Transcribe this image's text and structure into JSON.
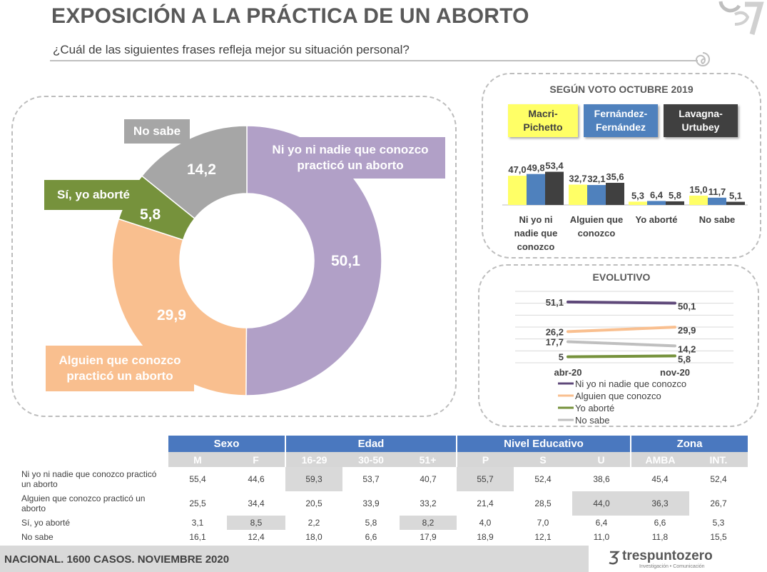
{
  "title": "EXPOSICIÓN A LA PRÁCTICA DE UN ABORTO",
  "subtitle": "¿Cuál de las siguientes frases refleja mejor su situación personal?",
  "colors": {
    "purple": "#b1a0c7",
    "orange": "#f9bf8f",
    "green": "#76923c",
    "gray": "#a6a6a6",
    "yellow": "#ffff66",
    "blue": "#4f81bd",
    "dark": "#404040",
    "tableHeader": "#4a78bf"
  },
  "chart_data": [
    {
      "type": "pie",
      "categories": [
        "Ni yo ni nadie que conozco practicó un aborto",
        "Alguien que conozco practicó un aborto",
        "Sí, yo aborté",
        "No sabe"
      ],
      "values": [
        50.1,
        29.9,
        5.8,
        14.2
      ],
      "value_labels": [
        "50,1",
        "29,9",
        "5,8",
        "14,2"
      ],
      "colors": [
        "#b1a0c7",
        "#f9bf8f",
        "#76923c",
        "#a6a6a6"
      ],
      "donut": true
    },
    {
      "type": "bar",
      "title": "SEGÚN VOTO OCTUBRE 2019",
      "categories": [
        "Ni yo ni nadie que conozco",
        "Alguien que conozco",
        "Yo aborté",
        "No sabe"
      ],
      "category_lines": [
        [
          "Ni yo ni",
          "nadie que",
          "conozco"
        ],
        [
          "Alguien que",
          "conozco"
        ],
        [
          "Yo aborté"
        ],
        [
          "No sabe"
        ]
      ],
      "series": [
        {
          "name": "Macri-Pichetto",
          "values": [
            47.0,
            32.7,
            5.3,
            15.0
          ],
          "labels": [
            "47,0",
            "32,7",
            "5,3",
            "15,0"
          ],
          "color": "#ffff66"
        },
        {
          "name": "Fernández-Fernández",
          "values": [
            49.8,
            32.1,
            6.4,
            11.7
          ],
          "labels": [
            "49,8",
            "32,1",
            "6,4",
            "11,7"
          ],
          "color": "#4f81bd"
        },
        {
          "name": "Lavagna-Urtubey",
          "values": [
            53.4,
            35.6,
            5.8,
            5.1
          ],
          "labels": [
            "53,4",
            "35,6",
            "5,8",
            "5,1"
          ],
          "color": "#404040"
        }
      ],
      "legend": [
        {
          "lines": [
            "Macri-",
            "Pichetto"
          ],
          "color": "#ffff66",
          "text_color": "#404040"
        },
        {
          "lines": [
            "Fernández-",
            "Fernández"
          ],
          "color": "#4f81bd",
          "text_color": "#ffffff"
        },
        {
          "lines": [
            "Lavagna-",
            "Urtubey"
          ],
          "color": "#404040",
          "text_color": "#ffffff"
        }
      ],
      "legend_position": "top",
      "ylim": [
        0,
        60
      ]
    },
    {
      "type": "line",
      "title": "EVOLUTIVO",
      "x": [
        "abr-20",
        "nov-20"
      ],
      "series": [
        {
          "name": "Ni yo ni nadie que conozco",
          "values": [
            51.1,
            50.1
          ],
          "labels": [
            "51,1",
            "50,1"
          ],
          "color": "#5f497a"
        },
        {
          "name": "Alguien que conozco",
          "values": [
            26.2,
            29.9
          ],
          "labels": [
            "26,2",
            "29,9"
          ],
          "color": "#f9bf8f"
        },
        {
          "name": "Yo aborté",
          "values": [
            5,
            5.8
          ],
          "labels": [
            "5",
            "5,8"
          ],
          "color": "#76923c"
        },
        {
          "name": "No sabe",
          "values": [
            17.7,
            14.2
          ],
          "labels": [
            "17,7",
            "14,2"
          ],
          "color": "#bfbfbf"
        }
      ],
      "legend_position": "bottom",
      "grid": true
    }
  ],
  "donut_labels": {
    "ni_yo": "Ni yo ni nadie que conozco practicó un aborto",
    "alguien": "Alguien que conozco practicó un aborto",
    "si_yo": "Sí, yo aborté",
    "no_sabe": "No sabe"
  },
  "table": {
    "groups": [
      "Sexo",
      "Edad",
      "Nivel Educativo",
      "Zona"
    ],
    "columns": [
      "M",
      "F",
      "16-29",
      "30-50",
      "51+",
      "P",
      "S",
      "U",
      "AMBA",
      "INT."
    ],
    "rows": [
      {
        "label": "Ni yo ni nadie que conozco practicó un aborto",
        "values": [
          "55,4",
          "44,6",
          "59,3",
          "53,7",
          "40,7",
          "55,7",
          "52,4",
          "38,6",
          "45,4",
          "52,4"
        ]
      },
      {
        "label": "Alguien que conozco practicó un aborto",
        "values": [
          "25,5",
          "34,4",
          "20,5",
          "33,9",
          "33,2",
          "21,4",
          "28,5",
          "44,0",
          "36,3",
          "26,7"
        ]
      },
      {
        "label": "Sí, yo aborté",
        "values": [
          "3,1",
          "8,5",
          "2,2",
          "5,8",
          "8,2",
          "4,0",
          "7,0",
          "6,4",
          "6,6",
          "5,3"
        ]
      },
      {
        "label": "No sabe",
        "values": [
          "16,1",
          "12,4",
          "18,0",
          "6,6",
          "17,9",
          "18,9",
          "12,1",
          "11,0",
          "11,8",
          "15,5"
        ]
      }
    ]
  },
  "footer": "NACIONAL. 1600 CASOS. NOVIEMBRE 2020",
  "brand": {
    "name": "trespuntozero",
    "tagline": "Investigación • Comunicación"
  },
  "icons": [
    "brand-logo-icon",
    "swirl-icon"
  ]
}
